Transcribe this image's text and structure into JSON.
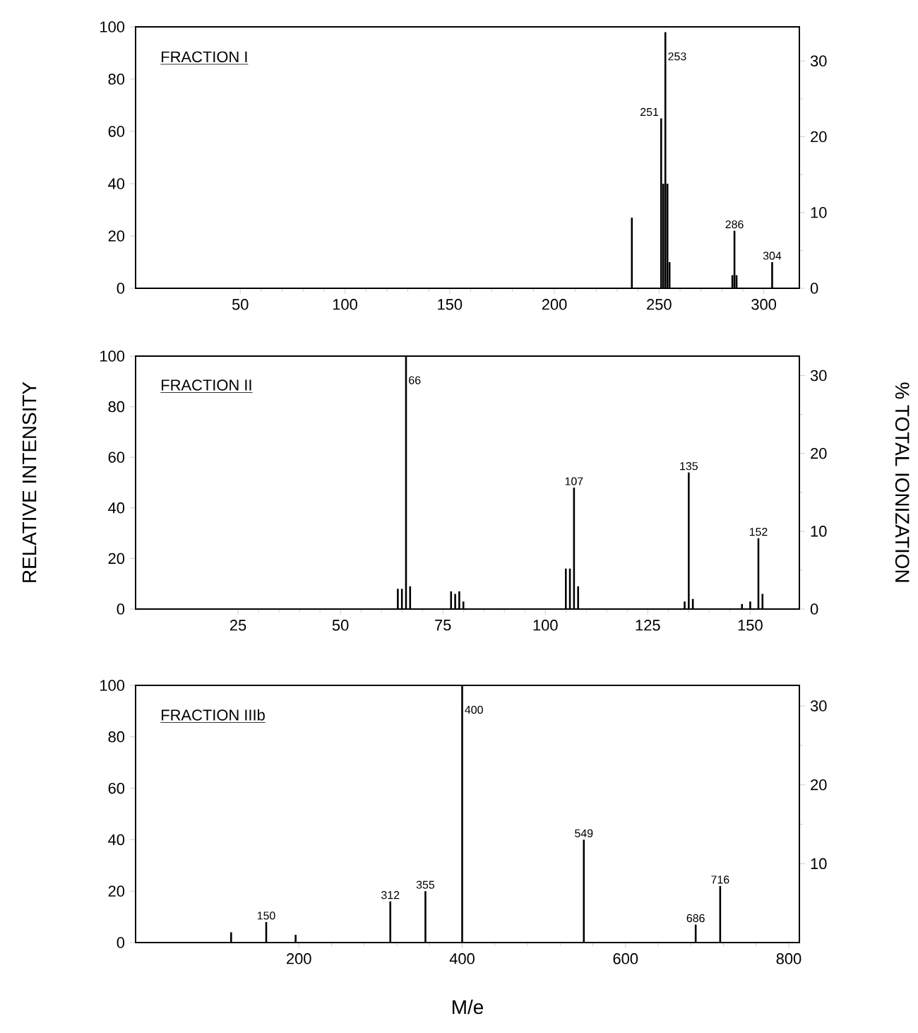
{
  "chart_data": [
    {
      "type": "bar",
      "title": "FRACTION I",
      "xlim": [
        0,
        317
      ],
      "xticks": [
        50,
        100,
        150,
        200,
        250,
        300
      ],
      "ylim": [
        0,
        100
      ],
      "yticks": [
        0,
        20,
        40,
        60,
        80,
        100
      ],
      "y2lim": [
        0,
        34.5
      ],
      "y2ticks": [
        0,
        10,
        20,
        30
      ],
      "series": [
        {
          "color": "#000000",
          "x": [
            237,
            251,
            252,
            253,
            254,
            255,
            285,
            286,
            287,
            304
          ],
          "values": [
            27,
            65,
            40,
            98,
            40,
            10,
            5,
            22,
            5,
            10
          ]
        }
      ],
      "annotations": [
        {
          "text": "251",
          "x": 251,
          "y": 65
        },
        {
          "text": "253",
          "x": 253,
          "y": 98
        },
        {
          "text": "286",
          "x": 286,
          "y": 22
        },
        {
          "text": "304",
          "x": 304,
          "y": 10
        }
      ]
    },
    {
      "type": "bar",
      "title": "FRACTION II",
      "ylabel": "RELATIVE INTENSITY",
      "y2label": "% TOTAL IONIZATION",
      "xlim": [
        0,
        162
      ],
      "xticks": [
        25,
        50,
        75,
        100,
        125,
        150
      ],
      "ylim": [
        0,
        100
      ],
      "yticks": [
        0,
        20,
        40,
        60,
        80,
        100
      ],
      "y2lim": [
        0,
        32.5
      ],
      "y2ticks": [
        0,
        10,
        20,
        30
      ],
      "series": [
        {
          "color": "#000000",
          "x": [
            64,
            65,
            66,
            67,
            77,
            78,
            79,
            80,
            105,
            106,
            107,
            108,
            134,
            135,
            136,
            148,
            150,
            152,
            153
          ],
          "values": [
            8,
            8,
            100,
            9,
            7,
            6,
            7,
            3,
            16,
            16,
            48,
            9,
            3,
            54,
            4,
            2,
            3,
            28,
            6
          ]
        }
      ],
      "annotations": [
        {
          "text": "66",
          "x": 66,
          "y": 100
        },
        {
          "text": "107",
          "x": 107,
          "y": 48
        },
        {
          "text": "135",
          "x": 135,
          "y": 54
        },
        {
          "text": "152",
          "x": 152,
          "y": 28
        }
      ]
    },
    {
      "type": "bar",
      "title": "FRACTION IIIb",
      "xlabel": "M/e",
      "xlim": [
        0,
        813
      ],
      "xticks": [
        200,
        400,
        600,
        800
      ],
      "ylim": [
        0,
        100
      ],
      "yticks": [
        0,
        20,
        40,
        60,
        80,
        100
      ],
      "y2lim": [
        0,
        32.6
      ],
      "y2ticks": [
        10,
        20,
        30
      ],
      "series": [
        {
          "color": "#000000",
          "x": [
            117,
            160,
            196,
            312,
            355,
            400,
            549,
            686,
            716
          ],
          "values": [
            4,
            8,
            3,
            16,
            20,
            100,
            40,
            7,
            22
          ]
        }
      ],
      "annotations": [
        {
          "text": "150",
          "x": 160,
          "y": 8
        },
        {
          "text": "312",
          "x": 312,
          "y": 16
        },
        {
          "text": "355",
          "x": 355,
          "y": 20
        },
        {
          "text": "400",
          "x": 400,
          "y": 100
        },
        {
          "text": "549",
          "x": 549,
          "y": 40
        },
        {
          "text": "686",
          "x": 686,
          "y": 7
        },
        {
          "text": "716",
          "x": 716,
          "y": 22
        }
      ]
    }
  ]
}
